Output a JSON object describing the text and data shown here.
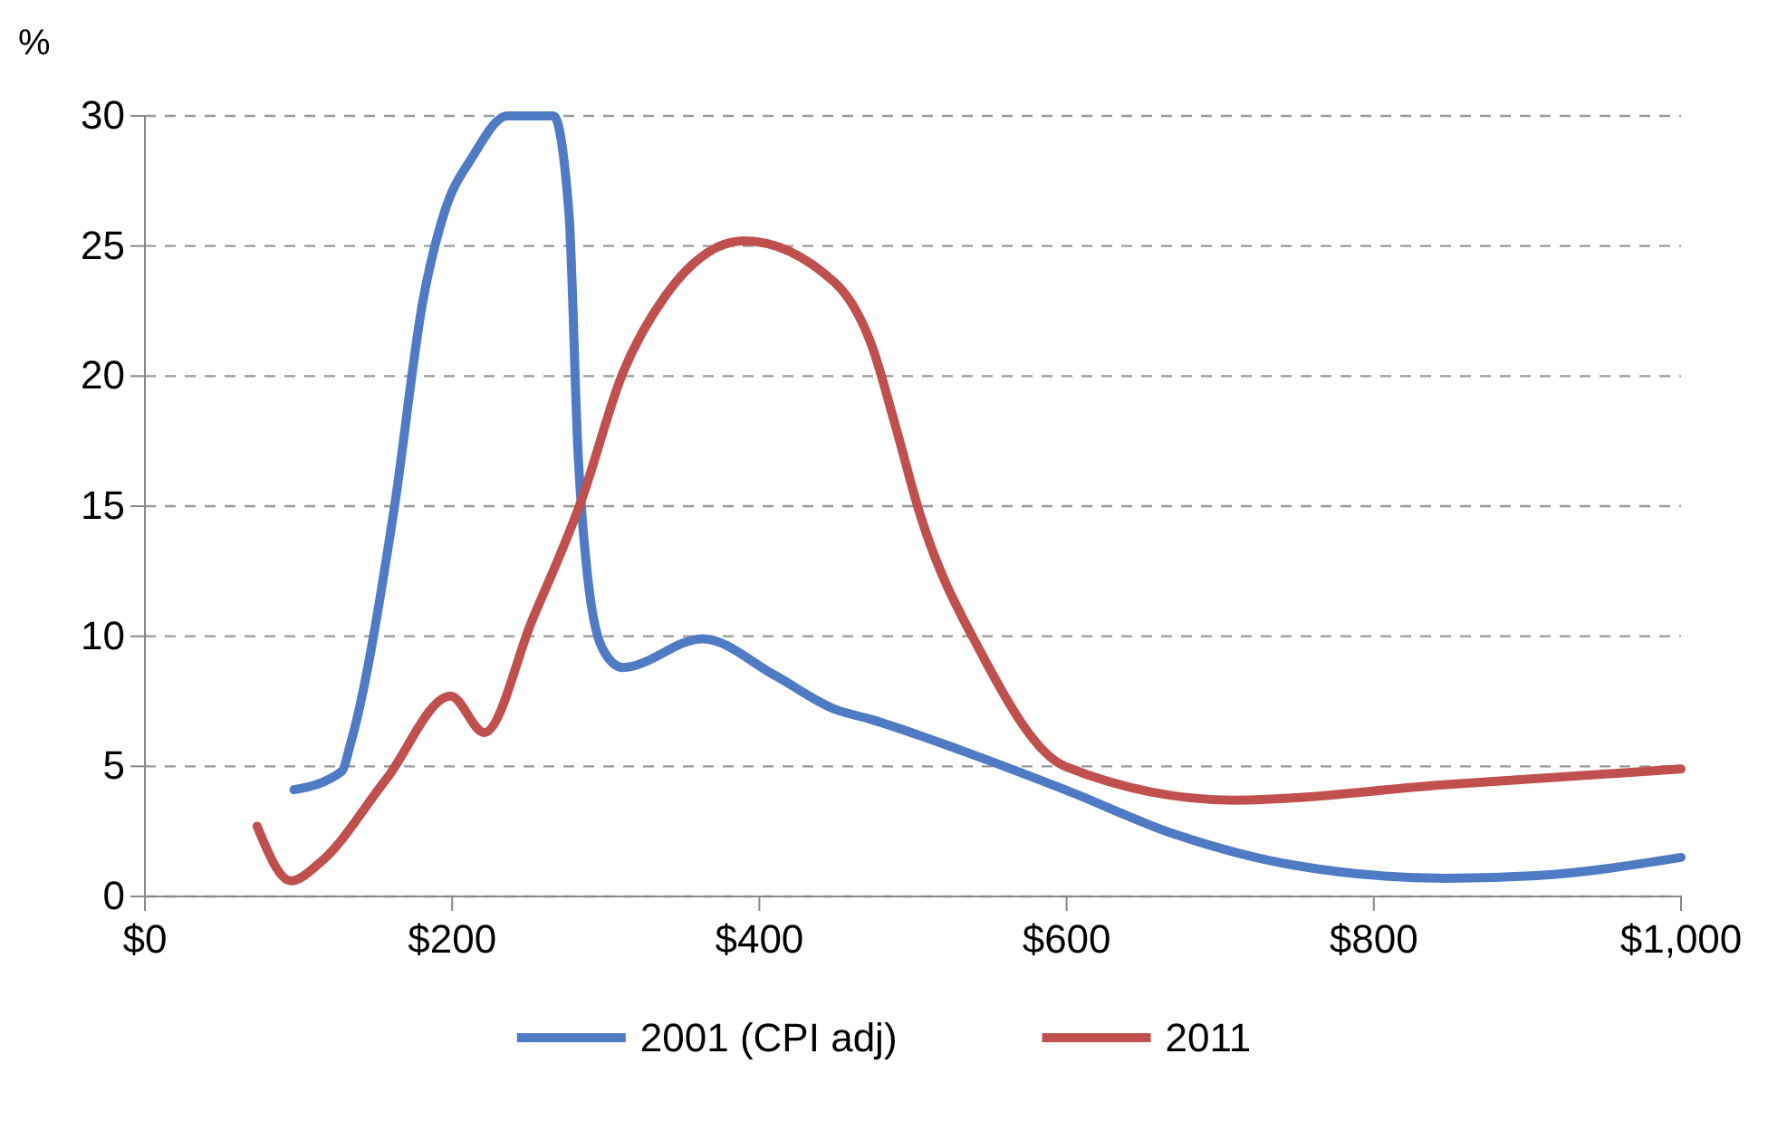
{
  "chart_data": {
    "type": "line",
    "ylabel": "%",
    "xlim": [
      0,
      1000
    ],
    "ylim": [
      0,
      30
    ],
    "xticks": [
      {
        "value": 0,
        "label": "$0"
      },
      {
        "value": 200,
        "label": "$200"
      },
      {
        "value": 400,
        "label": "$400"
      },
      {
        "value": 600,
        "label": "$600"
      },
      {
        "value": 800,
        "label": "$800"
      },
      {
        "value": 1000,
        "label": "$1,000"
      }
    ],
    "yticks": [
      0,
      5,
      10,
      15,
      20,
      25,
      30
    ],
    "grid": "y",
    "legend": "bottom",
    "line_style": "solid",
    "marker": "none",
    "series": [
      {
        "name": "2001 (CPI adj)",
        "color": "#4f7bc5",
        "x": [
          97,
          128,
          134,
          162,
          181,
          195,
          213,
          236,
          266,
          276,
          282,
          288,
          299,
          311,
          363,
          410,
          449,
          473,
          532,
          599,
          670,
          748,
          847,
          906,
          1000
        ],
        "values": [
          4.1,
          4.8,
          5.9,
          14.8,
          22.9,
          26.3,
          28.4,
          30,
          30,
          26.3,
          17,
          12.4,
          9.4,
          8.8,
          9.9,
          8.5,
          7.2,
          6.8,
          5.6,
          4.1,
          2.4,
          1.2,
          0.7,
          0.8,
          1.5
        ]
      },
      {
        "name": "2011",
        "color": "#c0504d",
        "x": [
          73,
          95,
          114,
          157,
          199,
          221,
          252,
          284,
          311,
          339,
          390,
          449,
          473,
          489,
          504,
          544,
          599,
          709,
          847,
          1000
        ],
        "values": [
          2.7,
          0.6,
          1.3,
          4.5,
          7.7,
          6.3,
          10.6,
          15.2,
          20.1,
          23.1,
          25.2,
          23.6,
          21.2,
          18,
          14.8,
          9.4,
          5,
          3.7,
          4.3,
          4.9
        ]
      }
    ]
  }
}
